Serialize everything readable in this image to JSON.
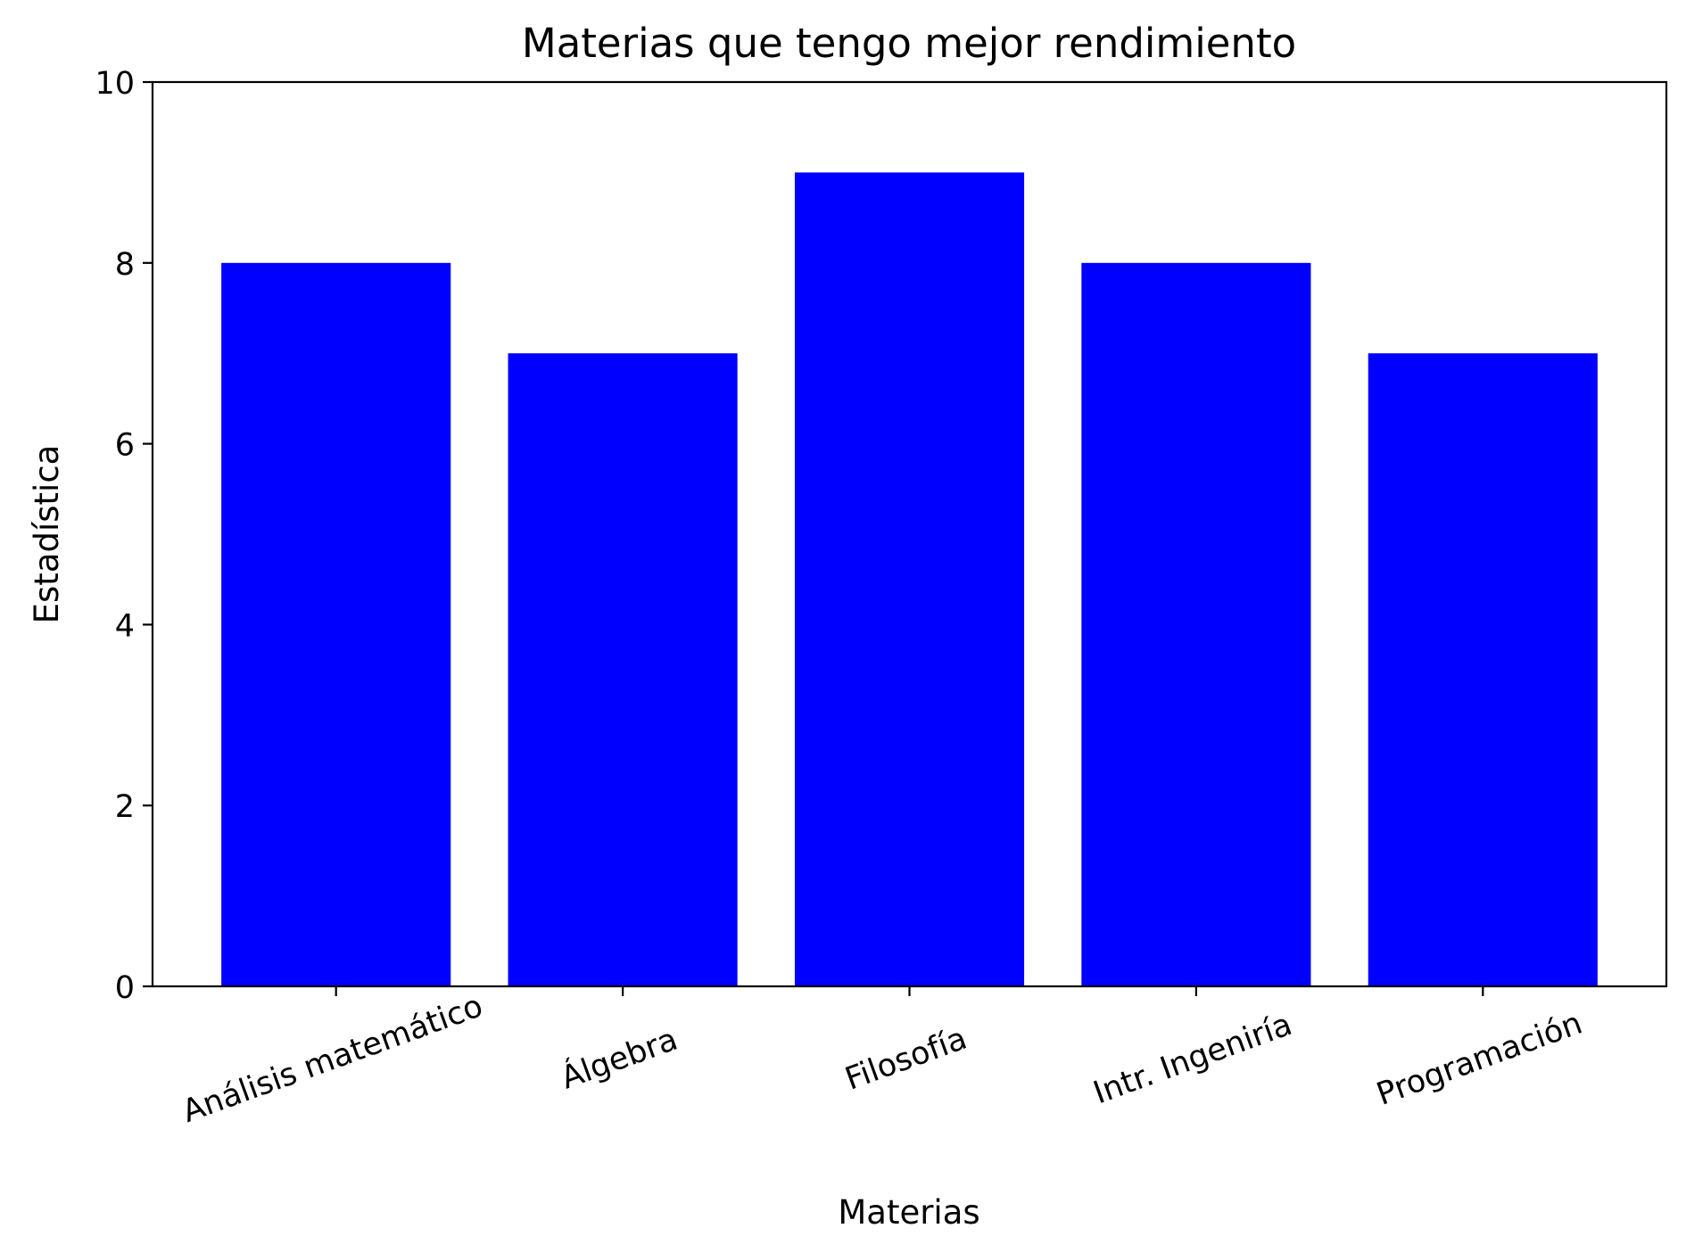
{
  "chart_data": {
    "type": "bar",
    "title": "Materias que tengo mejor rendimiento",
    "xlabel": "Materias",
    "ylabel": "Estadística",
    "categories": [
      "Análisis matemático",
      "Álgebra",
      "Filosofía",
      "Intr. Ingeniría",
      "Programación"
    ],
    "values": [
      8,
      7,
      9,
      8,
      7
    ],
    "ylim": [
      0,
      10
    ],
    "yticks": [
      0,
      2,
      4,
      6,
      8,
      10
    ],
    "grid": false,
    "bar_color": "#0000ff"
  }
}
